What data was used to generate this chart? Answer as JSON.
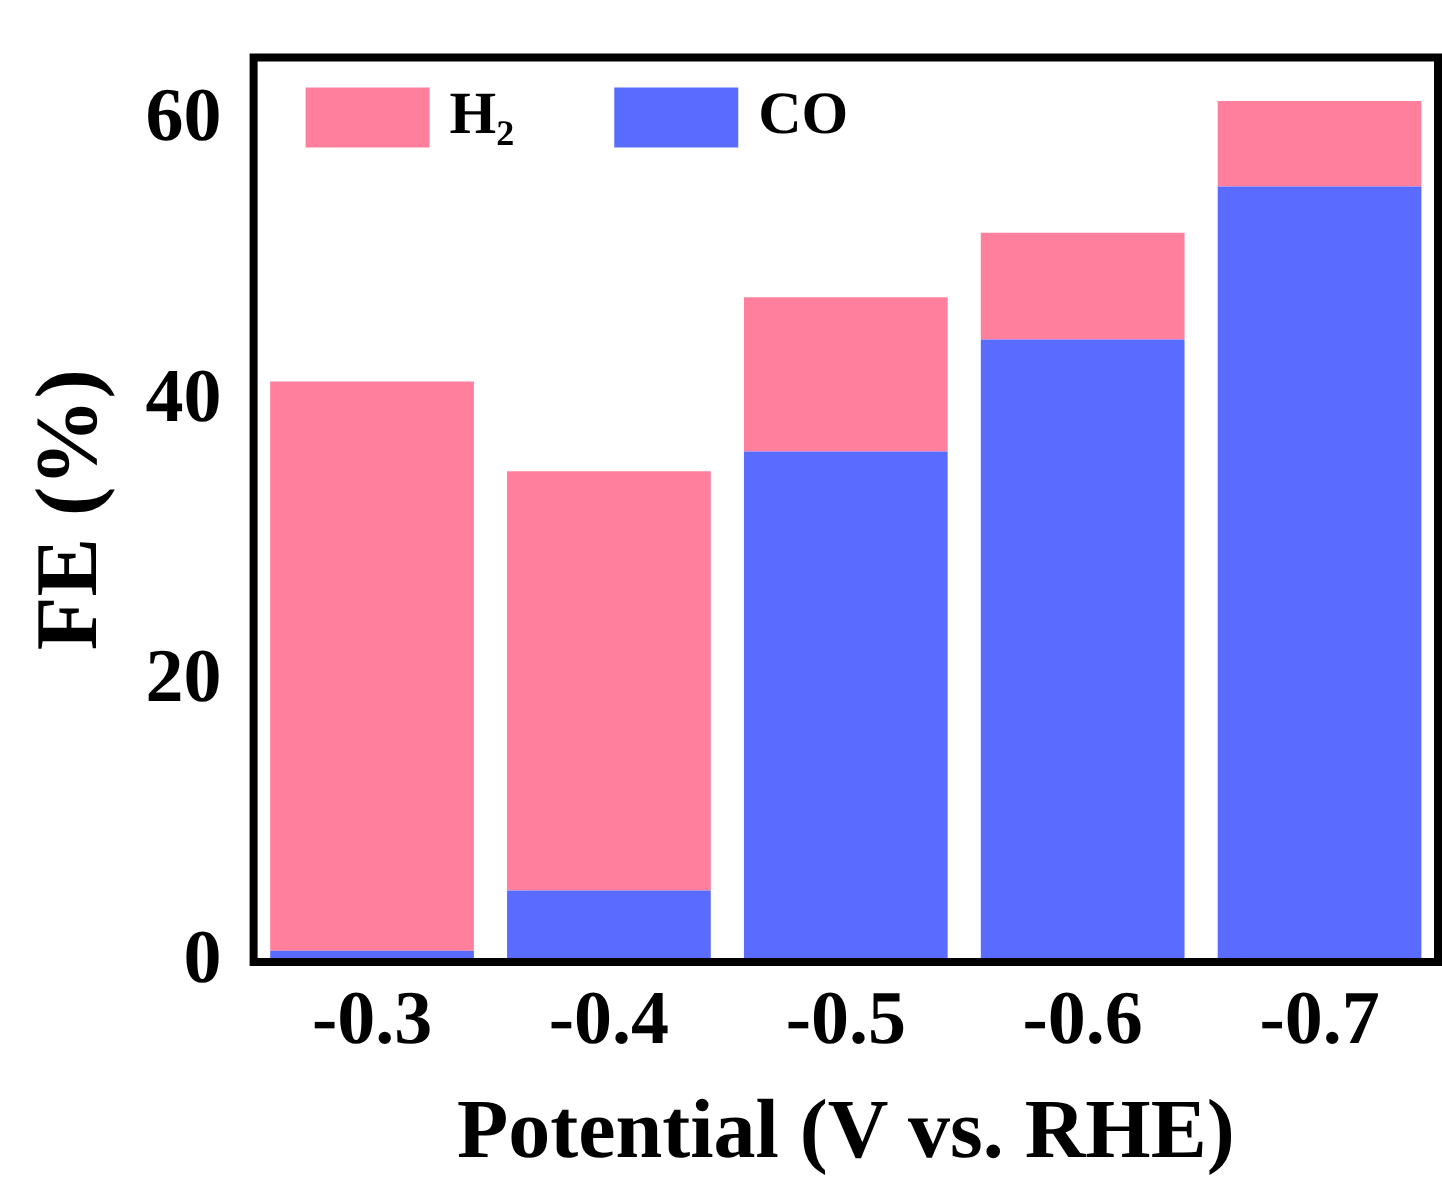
{
  "chart_data": {
    "type": "bar",
    "xlabel": "Potential (V vs. RHE)",
    "ylabel": "FE (%)",
    "categories": [
      "-0.3",
      "-0.4",
      "-0.5",
      "-0.6",
      "-0.7"
    ],
    "stacked": true,
    "series": [
      {
        "name": "CO",
        "color": "#5a6cff",
        "values": [
          0.8,
          5.1,
          36.4,
          44.4,
          55.3
        ]
      },
      {
        "name": "H₂",
        "color": "#ff7f9c",
        "values": [
          40.6,
          29.9,
          11.0,
          7.6,
          6.1
        ]
      }
    ],
    "ylim": [
      0,
      64.5
    ],
    "yticks": [
      0,
      20,
      40,
      60
    ],
    "grid": false,
    "legend": "top left"
  }
}
